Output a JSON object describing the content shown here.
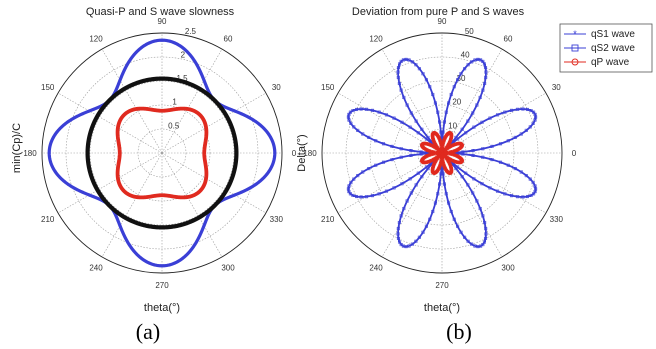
{
  "panels": {
    "a": "(a)",
    "b": "(b)"
  },
  "chart_data": [
    {
      "type": "polar-line",
      "title": "Quasi-P and S wave slowness",
      "ylabel": "min(Cp)/C",
      "xlabel": "theta(°)",
      "angle_ticks": [
        "0",
        "30",
        "60",
        "90",
        "120",
        "150",
        "180",
        "210",
        "240",
        "270",
        "300",
        "330"
      ],
      "rlim": [
        0,
        2.5
      ],
      "r_ticks": [
        "0.5",
        "1",
        "1.5",
        "2",
        "2.5"
      ],
      "r_tick_values": [
        0.5,
        1,
        1.5,
        2,
        2.5
      ],
      "grid": true,
      "series": [
        {
          "color": "#3a3fd6",
          "model": "r = 1.95 + 0.4*cos(4*theta)"
        },
        {
          "color": "#111111",
          "model": "r = 1.55"
        },
        {
          "color": "#e02a1f",
          "model": "r = 1.0 - 0.12*cos(4*theta)"
        }
      ]
    },
    {
      "type": "polar-line",
      "title": "Deviation from pure P and S waves",
      "ylabel": "Delta(°)",
      "xlabel": "theta(°)",
      "angle_ticks": [
        "0",
        "30",
        "60",
        "90",
        "120",
        "150",
        "180",
        "210",
        "240",
        "270",
        "300",
        "330"
      ],
      "rlim": [
        0,
        50
      ],
      "r_ticks": [
        "10",
        "20",
        "30",
        "40",
        "50"
      ],
      "r_tick_values": [
        10,
        20,
        30,
        40,
        50
      ],
      "grid": true,
      "legend_position": "top-right",
      "series": [
        {
          "name": "qS1 wave",
          "marker": "*",
          "color": "#3a3fd6",
          "model": "r = 42*|sin(4*theta)| (8 lobes)"
        },
        {
          "name": "qS2 wave",
          "marker": "square",
          "color": "#3a3fd6",
          "model": "r = 42*|sin(4*theta)| (8 lobes)"
        },
        {
          "name": "qP wave",
          "marker": "circle",
          "color": "#e02a1f",
          "model": "r = 9*|sin(4*theta)| (8 small lobes)"
        }
      ]
    }
  ]
}
